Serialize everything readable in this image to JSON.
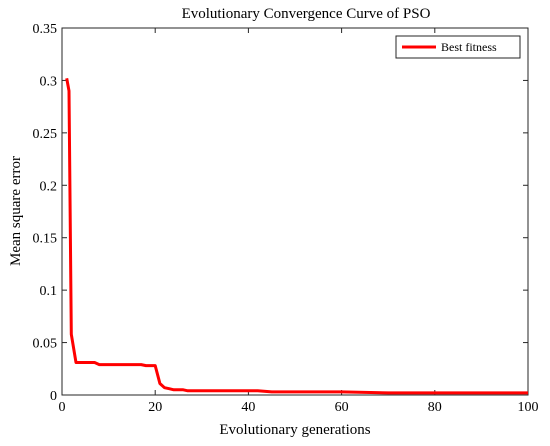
{
  "chart_data": {
    "type": "line",
    "title": "Evolutionary Convergence Curve of PSO",
    "xlabel": "Evolutionary generations",
    "ylabel": "Mean square error",
    "xlim": [
      0,
      100
    ],
    "ylim": [
      0,
      0.35
    ],
    "xticks": [
      0,
      20,
      40,
      60,
      80,
      100
    ],
    "yticks": [
      0,
      0.05,
      0.1,
      0.15,
      0.2,
      0.25,
      0.3,
      0.35
    ],
    "xtick_labels": [
      "0",
      "20",
      "40",
      "60",
      "80",
      "100"
    ],
    "ytick_labels": [
      "0",
      "0.05",
      "0.1",
      "0.15",
      "0.2",
      "0.25",
      "0.3",
      "0.35"
    ],
    "grid": false,
    "legend_position": "top-right",
    "series": [
      {
        "name": "Best fitness",
        "color": "#ff0000",
        "x": [
          1,
          1.5,
          2,
          3,
          4,
          5,
          6,
          7,
          8,
          10,
          12,
          14,
          16,
          17,
          18,
          19,
          20,
          21,
          22,
          23,
          24,
          25,
          26,
          27,
          28,
          30,
          35,
          40,
          42,
          45,
          50,
          60,
          70,
          80,
          90,
          100
        ],
        "y": [
          0.302,
          0.29,
          0.058,
          0.031,
          0.031,
          0.031,
          0.031,
          0.031,
          0.029,
          0.029,
          0.029,
          0.029,
          0.029,
          0.029,
          0.028,
          0.028,
          0.028,
          0.011,
          0.007,
          0.006,
          0.005,
          0.005,
          0.005,
          0.004,
          0.004,
          0.004,
          0.004,
          0.004,
          0.004,
          0.003,
          0.003,
          0.003,
          0.002,
          0.002,
          0.002,
          0.002
        ]
      }
    ]
  }
}
